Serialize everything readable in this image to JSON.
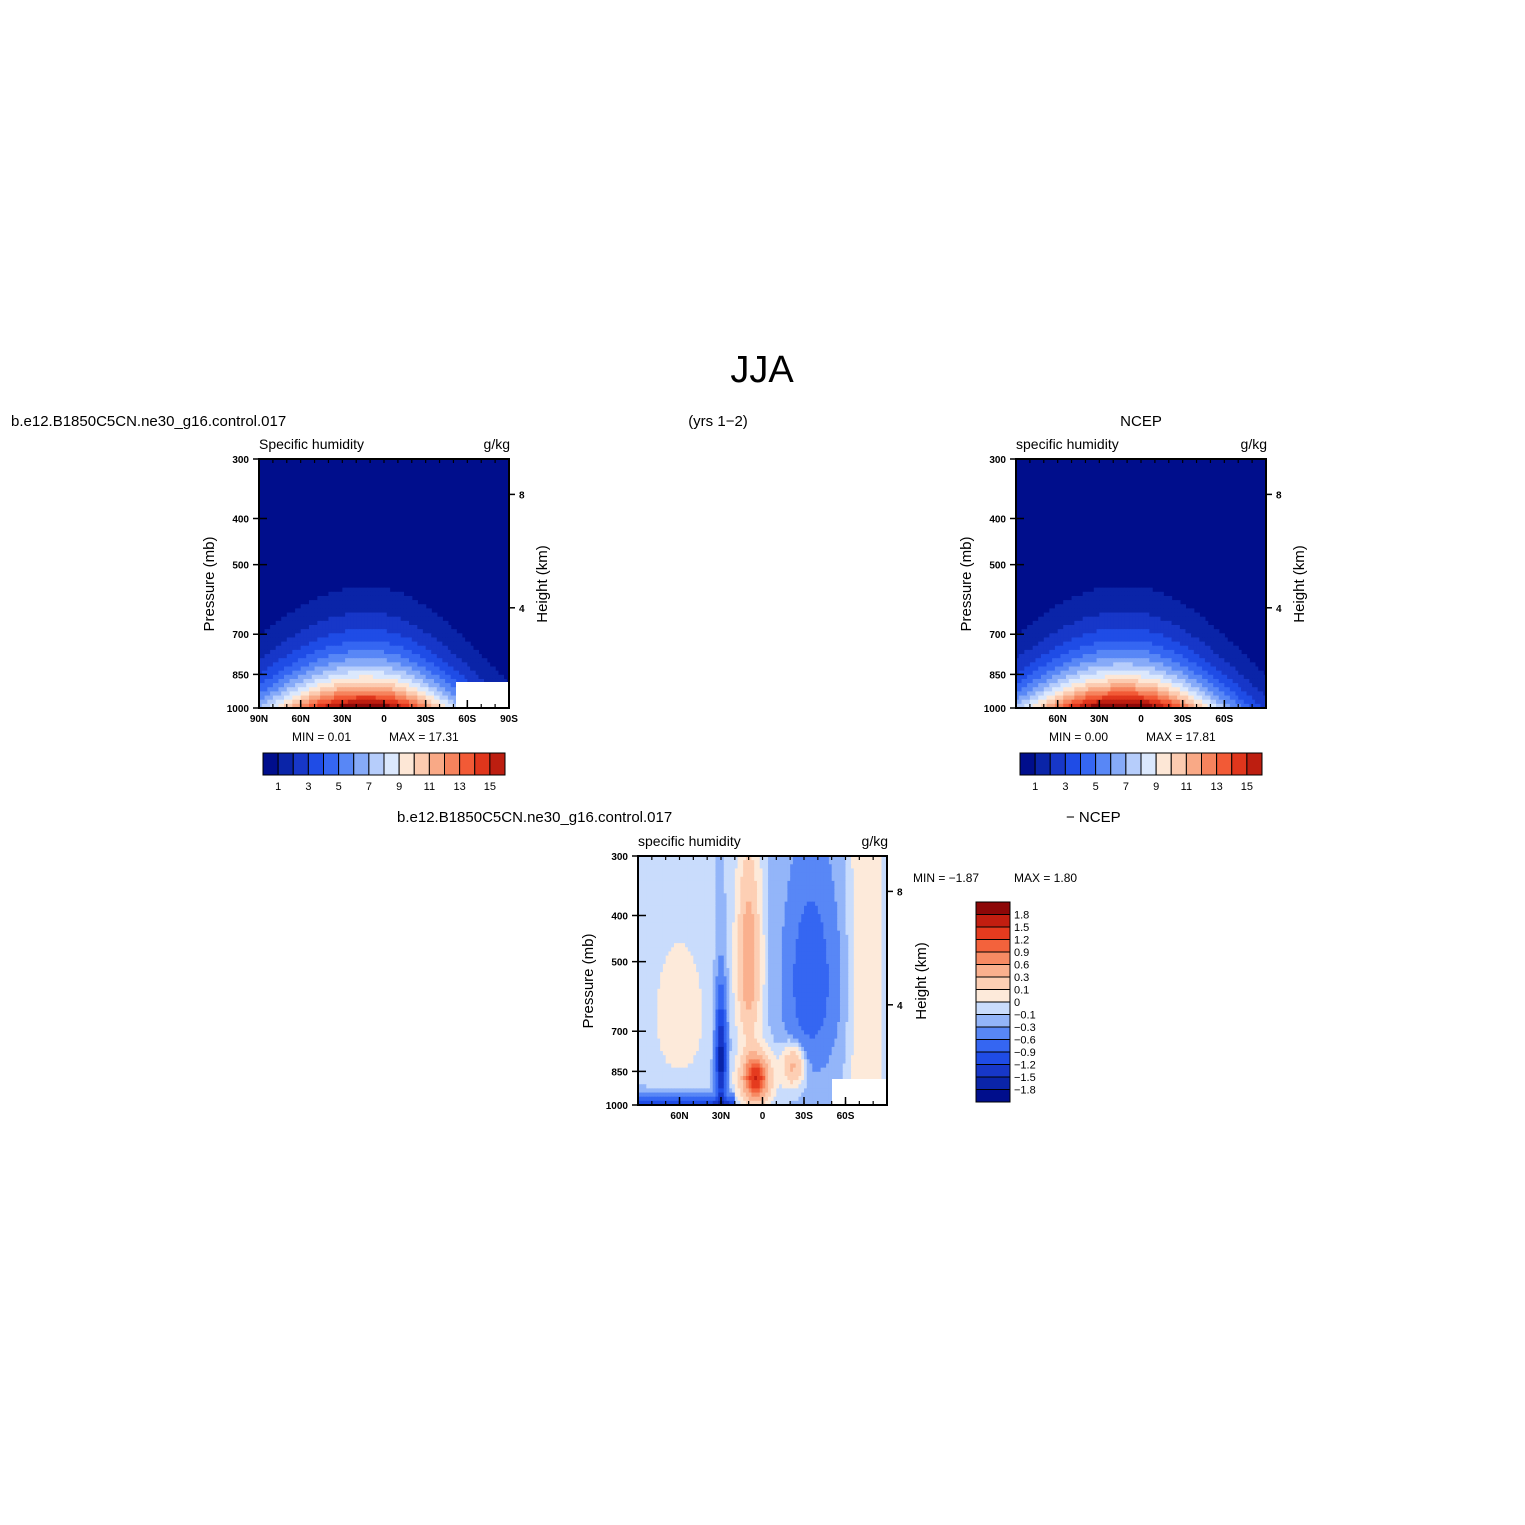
{
  "figure": {
    "title": "JJA",
    "left_string": "b.e12.B1850C5CN.ne30_g16.control.017",
    "center_string": "(yrs 1−2)",
    "right_string": "NCEP",
    "diff_left_string": "b.e12.B1850C5CN.ne30_g16.control.017",
    "diff_right_string": "− NCEP"
  },
  "palette": {
    "levels_colors": [
      "#000e8c",
      "#0a24a8",
      "#1737c8",
      "#1f4ce6",
      "#3566f2",
      "#5887f6",
      "#86aaf8",
      "#b6cdfb",
      "#dbe8fd",
      "#fde7d6",
      "#fccbb0",
      "#f9a986",
      "#f6835d",
      "#f25a36",
      "#e0361c",
      "#bd1e10",
      "#8d0808"
    ],
    "diff_colors": [
      "#000e8c",
      "#0a24a8",
      "#1737c8",
      "#1f4ce6",
      "#3566f2",
      "#5887f6",
      "#93b5f9",
      "#c9dcfc",
      "#fdeada",
      "#fdcfb4",
      "#fab08e",
      "#f78a63",
      "#f3623c",
      "#e53b1f",
      "#c21e10",
      "#8d0808"
    ]
  },
  "chart_data": [
    {
      "type": "contour",
      "panel": "model",
      "title_left": "Specific humidity",
      "title_right": "g/kg",
      "ylabel": "Pressure (mb)",
      "ylabel_right": "Height (km)",
      "x_ticks": [
        "90N",
        "60N",
        "30N",
        "0",
        "30S",
        "60S",
        "90S"
      ],
      "y_ticks": [
        "300",
        "400",
        "500",
        "700",
        "850",
        "1000"
      ],
      "y_ticks_right": [
        "8",
        "4"
      ],
      "xlim": [
        90,
        -90
      ],
      "ylim": [
        1000,
        300
      ],
      "min_text": "MIN =   0.01",
      "max_text": "MAX =   17.31",
      "min": 0.01,
      "max": 17.31,
      "levels": [
        1,
        2,
        3,
        4,
        5,
        6,
        7,
        8,
        9,
        10,
        11,
        12,
        13,
        14,
        15,
        16
      ],
      "colorbar_labels": [
        "1",
        "3",
        "5",
        "7",
        "9",
        "11",
        "13",
        "15"
      ],
      "peak_lat": 10,
      "missing_region": "southern high latitudes near surface"
    },
    {
      "type": "contour",
      "panel": "obs",
      "title_left": "specific humidity",
      "title_right": "g/kg",
      "ylabel": "Pressure (mb)",
      "ylabel_right": "Height (km)",
      "x_ticks": [
        "60N",
        "30N",
        "0",
        "30S",
        "60S"
      ],
      "y_ticks": [
        "300",
        "400",
        "500",
        "700",
        "850",
        "1000"
      ],
      "y_ticks_right": [
        "8",
        "4"
      ],
      "xlim": [
        90,
        -90
      ],
      "ylim": [
        1000,
        300
      ],
      "min_text": "MIN =   0.00",
      "max_text": "MAX =   17.81",
      "min": 0.0,
      "max": 17.81,
      "levels": [
        1,
        2,
        3,
        4,
        5,
        6,
        7,
        8,
        9,
        10,
        11,
        12,
        13,
        14,
        15,
        16
      ],
      "colorbar_labels": [
        "1",
        "3",
        "5",
        "7",
        "9",
        "11",
        "13",
        "15"
      ],
      "peak_lat": 10
    },
    {
      "type": "contour",
      "panel": "difference",
      "title_left": "specific humidity",
      "title_right": "g/kg",
      "ylabel": "Pressure (mb)",
      "ylabel_right": "Height (km)",
      "x_ticks": [
        "60N",
        "30N",
        "0",
        "30S",
        "60S"
      ],
      "y_ticks": [
        "300",
        "400",
        "500",
        "700",
        "850",
        "1000"
      ],
      "y_ticks_right": [
        "8",
        "4"
      ],
      "xlim": [
        90,
        -90
      ],
      "ylim": [
        1000,
        300
      ],
      "min_text": "MIN =   −1.87",
      "max_text": "MAX =   1.80",
      "min": -1.87,
      "max": 1.8,
      "levels": [
        -1.8,
        -1.5,
        -1.2,
        -0.9,
        -0.6,
        -0.3,
        -0.1,
        0,
        0.1,
        0.3,
        0.6,
        0.9,
        1.2,
        1.5,
        1.8
      ],
      "colorbar_labels": [
        "1.8",
        "1.5",
        "1.2",
        "0.9",
        "0.6",
        "0.3",
        "0.1",
        "0",
        "−0.1",
        "−0.3",
        "−0.6",
        "−0.9",
        "−1.2",
        "−1.5",
        "−1.8"
      ]
    }
  ]
}
